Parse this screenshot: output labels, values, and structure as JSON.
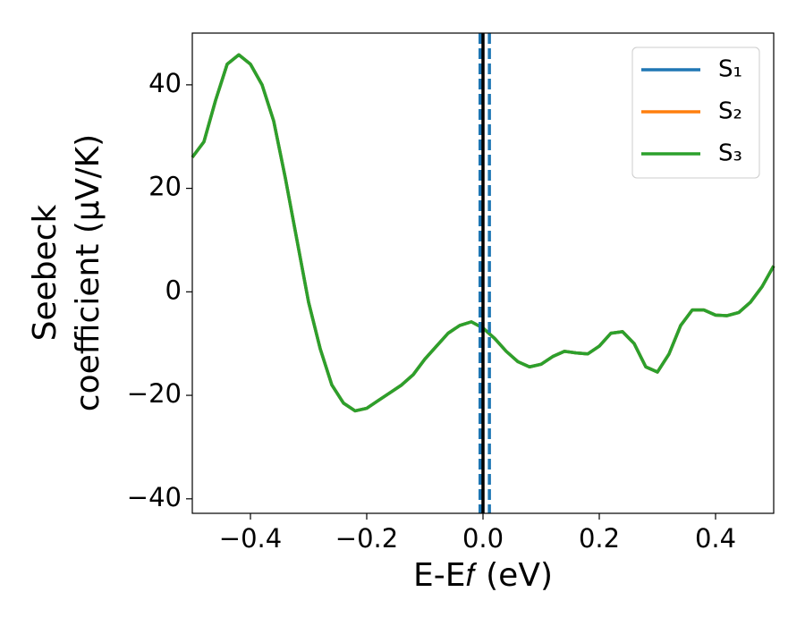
{
  "chart_data": {
    "type": "line",
    "xlabel": "E-E𝑓 (eV)",
    "ylabel": [
      "Seebeck",
      "coefficient  (μV/K)"
    ],
    "xlim": [
      -0.5,
      0.5
    ],
    "ylim": [
      -42.8,
      50
    ],
    "xticks": [
      {
        "value": -0.4,
        "label": "−0.4"
      },
      {
        "value": -0.2,
        "label": "−0.2"
      },
      {
        "value": 0,
        "label": "0.0"
      },
      {
        "value": 0.2,
        "label": "0.2"
      },
      {
        "value": 0.4,
        "label": "0.4"
      }
    ],
    "yticks": [
      {
        "value": -40,
        "label": "−40"
      },
      {
        "value": -20,
        "label": "−20"
      },
      0,
      20,
      40
    ],
    "x": [
      -0.5,
      -0.48,
      -0.46,
      -0.44,
      -0.42,
      -0.4,
      -0.38,
      -0.36,
      -0.34,
      -0.32,
      -0.3,
      -0.28,
      -0.26,
      -0.24,
      -0.22,
      -0.2,
      -0.18,
      -0.16,
      -0.14,
      -0.12,
      -0.1,
      -0.08,
      -0.06,
      -0.04,
      -0.02,
      0,
      0.02,
      0.04,
      0.06,
      0.08,
      0.1,
      0.12,
      0.14,
      0.16,
      0.18,
      0.2,
      0.22,
      0.24,
      0.26,
      0.28,
      0.3,
      0.32,
      0.34,
      0.36,
      0.38,
      0.4,
      0.42,
      0.44,
      0.46,
      0.48,
      0.5
    ],
    "series": [
      {
        "name": "S₁",
        "color": "#1f77b4",
        "values": [
          26,
          29,
          37,
          44,
          45.8,
          44,
          40,
          33,
          22,
          10,
          -2,
          -11,
          -18,
          -21.5,
          -23,
          -22.5,
          -21,
          -19.5,
          -18,
          -16,
          -13,
          -10.5,
          -8,
          -6.5,
          -5.8,
          -7,
          -9,
          -11.5,
          -13.5,
          -14.5,
          -14,
          -12.5,
          -11.5,
          -11.8,
          -12,
          -10.5,
          -8,
          -7.7,
          -10,
          -14.5,
          -15.5,
          -12,
          -6.5,
          -3.5,
          -3.5,
          -4.5,
          -4.6,
          -4,
          -2,
          1,
          5
        ]
      },
      {
        "name": "S₂",
        "color": "#ff7f0e",
        "values": [
          26,
          29,
          37,
          44,
          45.8,
          44,
          40,
          33,
          22,
          10,
          -2,
          -11,
          -18,
          -21.5,
          -23,
          -22.5,
          -21,
          -19.5,
          -18,
          -16,
          -13,
          -10.5,
          -8,
          -6.5,
          -5.8,
          -7,
          -9,
          -11.5,
          -13.5,
          -14.5,
          -14,
          -12.5,
          -11.5,
          -11.8,
          -12,
          -10.5,
          -8,
          -7.7,
          -10,
          -14.5,
          -15.5,
          -12,
          -6.5,
          -3.5,
          -3.5,
          -4.5,
          -4.6,
          -4,
          -2,
          1,
          5
        ]
      },
      {
        "name": "S₃",
        "color": "#2ca02c",
        "values": [
          26,
          29,
          37,
          44,
          45.8,
          44,
          40,
          33,
          22,
          10,
          -2,
          -11,
          -18,
          -21.5,
          -23,
          -22.5,
          -21,
          -19.5,
          -18,
          -16,
          -13,
          -10.5,
          -8,
          -6.5,
          -5.8,
          -7,
          -9,
          -11.5,
          -13.5,
          -14.5,
          -14,
          -12.5,
          -11.5,
          -11.8,
          -12,
          -10.5,
          -8,
          -7.7,
          -10,
          -14.5,
          -15.5,
          -12,
          -6.5,
          -3.5,
          -3.5,
          -4.5,
          -4.6,
          -4,
          -2,
          1,
          5
        ]
      }
    ],
    "vlines": [
      {
        "x": -0.005,
        "color": "#1f77b4",
        "style": "dashed"
      },
      {
        "x": 0.011,
        "color": "#1f77b4",
        "style": "dashed"
      },
      {
        "x": 0,
        "color": "#000000",
        "style": "solid"
      }
    ],
    "legend": "upper right"
  }
}
